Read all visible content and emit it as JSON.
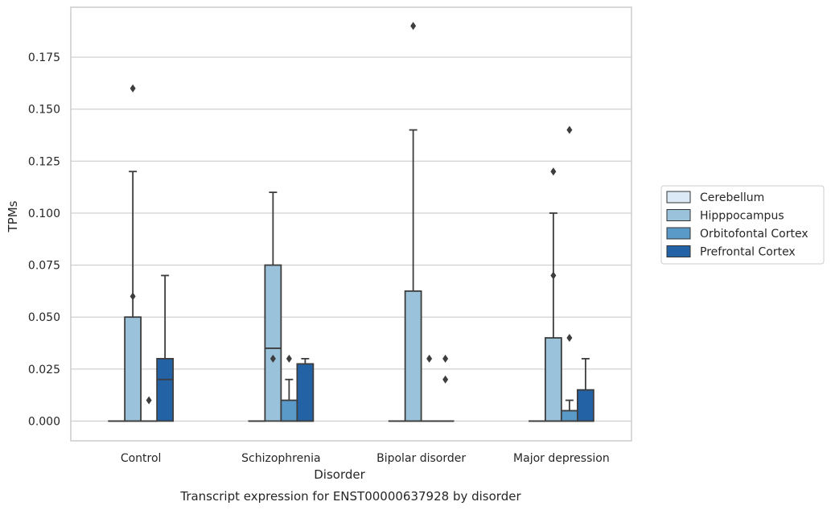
{
  "chart_data": {
    "type": "box",
    "title": "",
    "caption": "Transcript expression for ENST00000637928 by disorder",
    "xlabel": "Disorder",
    "ylabel": "TPMs",
    "ylim": [
      -0.0095,
      0.199
    ],
    "yticks": [
      "0.000",
      "0.025",
      "0.050",
      "0.075",
      "0.100",
      "0.125",
      "0.150",
      "0.175"
    ],
    "grid": "horizontal",
    "legend_position": "right",
    "categories": [
      "Control",
      "Schizophrenia",
      "Bipolar disorder",
      "Major depression"
    ],
    "series": [
      {
        "name": "Cerebellum",
        "color": "#dbe9f6",
        "boxes": [
          {
            "q1": 0,
            "median": 0,
            "q3": 0,
            "whislo": 0,
            "whishi": 0,
            "fliers": []
          },
          {
            "q1": 0,
            "median": 0,
            "q3": 0,
            "whislo": 0,
            "whishi": 0,
            "fliers": []
          },
          {
            "q1": 0,
            "median": 0,
            "q3": 0,
            "whislo": 0,
            "whishi": 0,
            "fliers": []
          },
          {
            "q1": 0,
            "median": 0,
            "q3": 0,
            "whislo": 0,
            "whishi": 0,
            "fliers": []
          }
        ]
      },
      {
        "name": "Hipppocampus",
        "color": "#9ac2db",
        "boxes": [
          {
            "q1": 0,
            "median": 0,
            "q3": 0.05,
            "whislo": 0,
            "whishi": 0.12,
            "fliers": [
              0.16,
              0.06
            ]
          },
          {
            "q1": 0,
            "median": 0.035,
            "q3": 0.075,
            "whislo": 0,
            "whishi": 0.11,
            "fliers": [
              0.03
            ]
          },
          {
            "q1": 0,
            "median": 0,
            "q3": 0.0625,
            "whislo": 0,
            "whishi": 0.14,
            "fliers": [
              0.19
            ]
          },
          {
            "q1": 0,
            "median": 0,
            "q3": 0.04,
            "whislo": 0,
            "whishi": 0.1,
            "fliers": [
              0.12,
              0.07
            ]
          }
        ]
      },
      {
        "name": "Orbitofontal Cortex",
        "color": "#5a9ac8",
        "boxes": [
          {
            "q1": 0,
            "median": 0,
            "q3": 0,
            "whislo": 0,
            "whishi": 0,
            "fliers": [
              0.01
            ]
          },
          {
            "q1": 0,
            "median": 0,
            "q3": 0.01,
            "whislo": 0,
            "whishi": 0.02,
            "fliers": [
              0.03
            ]
          },
          {
            "q1": 0,
            "median": 0,
            "q3": 0,
            "whislo": 0,
            "whishi": 0,
            "fliers": [
              0.03
            ]
          },
          {
            "q1": 0,
            "median": 0,
            "q3": 0.005,
            "whislo": 0,
            "whishi": 0.01,
            "fliers": [
              0.14,
              0.04
            ]
          }
        ]
      },
      {
        "name": "Prefrontal Cortex",
        "color": "#2462a6",
        "boxes": [
          {
            "q1": 0,
            "median": 0.02,
            "q3": 0.03,
            "whislo": 0,
            "whishi": 0.07,
            "fliers": []
          },
          {
            "q1": 0,
            "median": 0,
            "q3": 0.0275,
            "whislo": 0,
            "whishi": 0.03,
            "fliers": []
          },
          {
            "q1": 0,
            "median": 0,
            "q3": 0,
            "whislo": 0,
            "whishi": 0,
            "fliers": [
              0.03,
              0.02
            ]
          },
          {
            "q1": 0,
            "median": 0,
            "q3": 0.015,
            "whislo": 0,
            "whishi": 0.03,
            "fliers": []
          }
        ]
      }
    ]
  }
}
